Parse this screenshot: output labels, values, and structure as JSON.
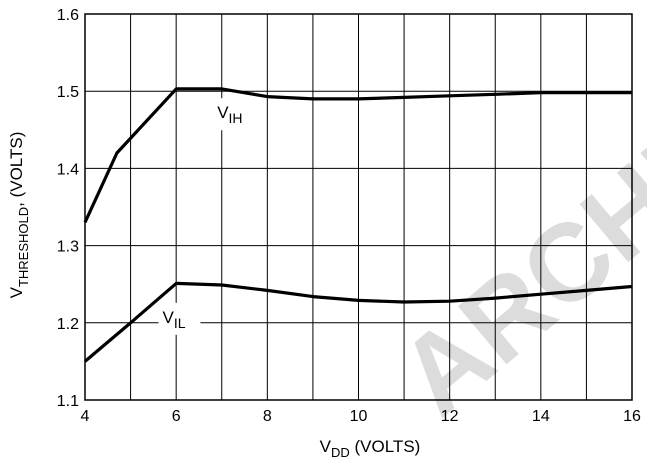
{
  "chart_data": {
    "type": "line",
    "xlabel": {
      "main": "V",
      "sub": "DD",
      "rest": " (VOLTS)"
    },
    "ylabel": {
      "main": "V",
      "sub": "THRESHOLD",
      "rest": ", (VOLTS)"
    },
    "xlim": [
      4,
      16
    ],
    "ylim": [
      1.1,
      1.6
    ],
    "xticks": [
      "4",
      "6",
      "8",
      "10",
      "12",
      "14",
      "16"
    ],
    "yticks": [
      "1.1",
      "1.2",
      "1.3",
      "1.4",
      "1.5",
      "1.6"
    ],
    "x_grid_step": 1,
    "y_grid_step": 0.1,
    "grid": true,
    "series": [
      {
        "label_main": "V",
        "label_sub": "IH",
        "color": "#000000",
        "points": [
          [
            4,
            1.33
          ],
          [
            4.7,
            1.42
          ],
          [
            6,
            1.503
          ],
          [
            7,
            1.503
          ],
          [
            8,
            1.493
          ],
          [
            9,
            1.49
          ],
          [
            10,
            1.49
          ],
          [
            11,
            1.492
          ],
          [
            12,
            1.494
          ],
          [
            13,
            1.496
          ],
          [
            14,
            1.498
          ],
          [
            15,
            1.498
          ],
          [
            16,
            1.498
          ]
        ]
      },
      {
        "label_main": "V",
        "label_sub": "IL",
        "color": "#000000",
        "points": [
          [
            4,
            1.15
          ],
          [
            5,
            1.2
          ],
          [
            6,
            1.251
          ],
          [
            7,
            1.249
          ],
          [
            8,
            1.242
          ],
          [
            9,
            1.234
          ],
          [
            10,
            1.229
          ],
          [
            11,
            1.227
          ],
          [
            12,
            1.228
          ],
          [
            13,
            1.232
          ],
          [
            14,
            1.237
          ],
          [
            15,
            1.242
          ],
          [
            16,
            1.247
          ]
        ]
      }
    ]
  },
  "watermark": "ARCHIVED"
}
